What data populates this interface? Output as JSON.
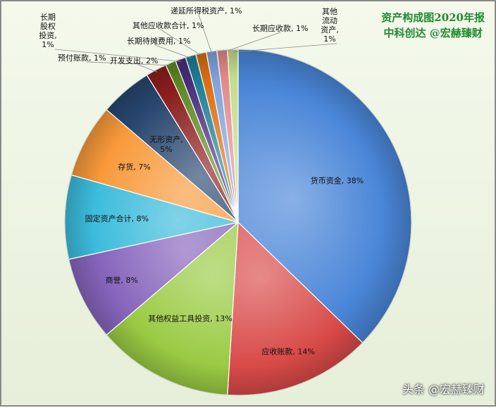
{
  "title": {
    "line1": "资产构成图2020年报",
    "line2": "中科创达 @宏赫臻财"
  },
  "watermark": "头条 @宏赫臻财",
  "chart_data": {
    "type": "pie",
    "title": "资产构成图2020年报",
    "subtitle": "中科创达 @宏赫臻财",
    "data_label_format": "category, percent",
    "slices": [
      {
        "label": "货币资金",
        "value": 38,
        "display": "货币资金, 38%",
        "color": "#4a86d8"
      },
      {
        "label": "应收账款",
        "value": 14,
        "display": "应收账款, 14%",
        "color": "#d84a48"
      },
      {
        "label": "其他权益工具投资",
        "value": 13,
        "display": "其他权益工具投资, 13%",
        "color": "#9acb44"
      },
      {
        "label": "商誉",
        "value": 8,
        "display": "商誉, 8%",
        "color": "#8664bc"
      },
      {
        "label": "固定资产合计",
        "value": 8,
        "display": "固定资产合计, 8%",
        "color": "#3cbcdc"
      },
      {
        "label": "存货",
        "value": 7,
        "display": "存货, 7%",
        "color": "#f89a3a"
      },
      {
        "label": "无形资产",
        "value": 5,
        "display": "无形资产, 5%",
        "color": "#27466e"
      },
      {
        "label": "开发支出",
        "value": 2,
        "display": "开发支出, 2%",
        "color": "#8c1e1e"
      },
      {
        "label": "预付账款",
        "value": 1,
        "display": "预付账款, 1%",
        "color": "#5f8a25"
      },
      {
        "label": "长期股权投资",
        "value": 1,
        "display": "长期股权投资, 1%",
        "color": "#4b2e7a"
      },
      {
        "label": "长期待摊费用",
        "value": 1,
        "display": "长期待摊费用, 1%",
        "color": "#1e7f94"
      },
      {
        "label": "其他应收款合计",
        "value": 1,
        "display": "其他应收款合计, 1%",
        "color": "#d96e12"
      },
      {
        "label": "递延所得税资产",
        "value": 1,
        "display": "递延所得税资产, 1%",
        "color": "#7da2dc"
      },
      {
        "label": "长期应收款",
        "value": 1,
        "display": "长期应收款, 1%",
        "color": "#e08a88"
      },
      {
        "label": "其他流动资产",
        "value": 1,
        "display": "其他流动资产, 1%",
        "color": "#c2dc8a"
      }
    ]
  }
}
